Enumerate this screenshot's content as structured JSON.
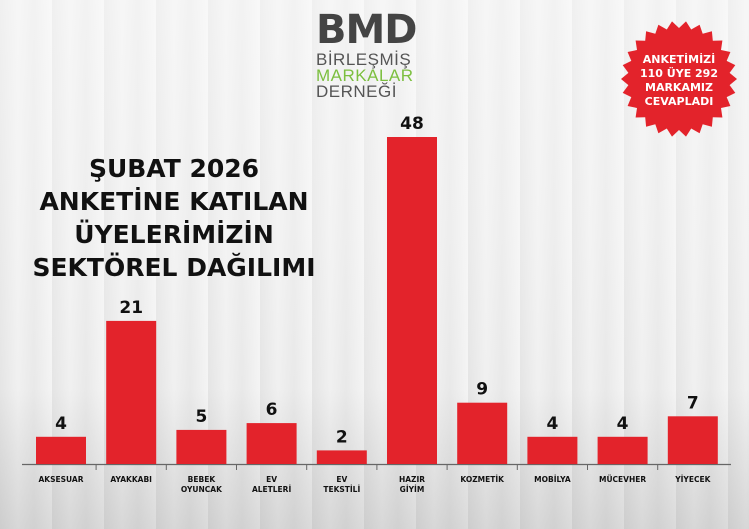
{
  "logo": {
    "mark": "BMD",
    "line1": "BİRLEŞMİŞ",
    "line2": "MARKALAR",
    "line3": "DERNEĞİ"
  },
  "title": {
    "lines": [
      "ŞUBAT 2026",
      "ANKETİNE KATILAN",
      "ÜYELERİMİZİN",
      "SEKTÖREL DAĞILIMI"
    ]
  },
  "badge": {
    "lines": [
      "ANKETİMİZİ",
      "110 ÜYE 292",
      "MARKAMIZ",
      "CEVAPLADI"
    ]
  },
  "colors": {
    "bar": "#e3232b",
    "badge": "#e3232b",
    "axis": "#666666",
    "text": "#111111"
  },
  "chart_data": {
    "type": "bar",
    "categories": [
      "AKSESUAR",
      "AYAKKABI",
      "BEBEK OYUNCAK",
      "EV ALETLERİ",
      "EV TEKSTİLİ",
      "HAZIR GİYİM",
      "KOZMETİK",
      "MOBİLYA",
      "MÜCEVHER",
      "YİYECEK"
    ],
    "category_lines": [
      [
        "AKSESUAR"
      ],
      [
        "AYAKKABI"
      ],
      [
        "BEBEK",
        "OYUNCAK"
      ],
      [
        "EV",
        "ALETLERİ"
      ],
      [
        "EV",
        "TEKSTİLİ"
      ],
      [
        "HAZIR",
        "GİYİM"
      ],
      [
        "KOZMETİK"
      ],
      [
        "MOBİLYA"
      ],
      [
        "MÜCEVHER"
      ],
      [
        "YİYECEK"
      ]
    ],
    "values": [
      4,
      21,
      5,
      6,
      2,
      48,
      9,
      4,
      4,
      7
    ],
    "data_labels": [
      "4",
      "21",
      "5",
      "6",
      "2",
      "48",
      "9",
      "4",
      "4",
      "7"
    ],
    "ylim": [
      0,
      48
    ],
    "grid": false,
    "legend": "none"
  }
}
